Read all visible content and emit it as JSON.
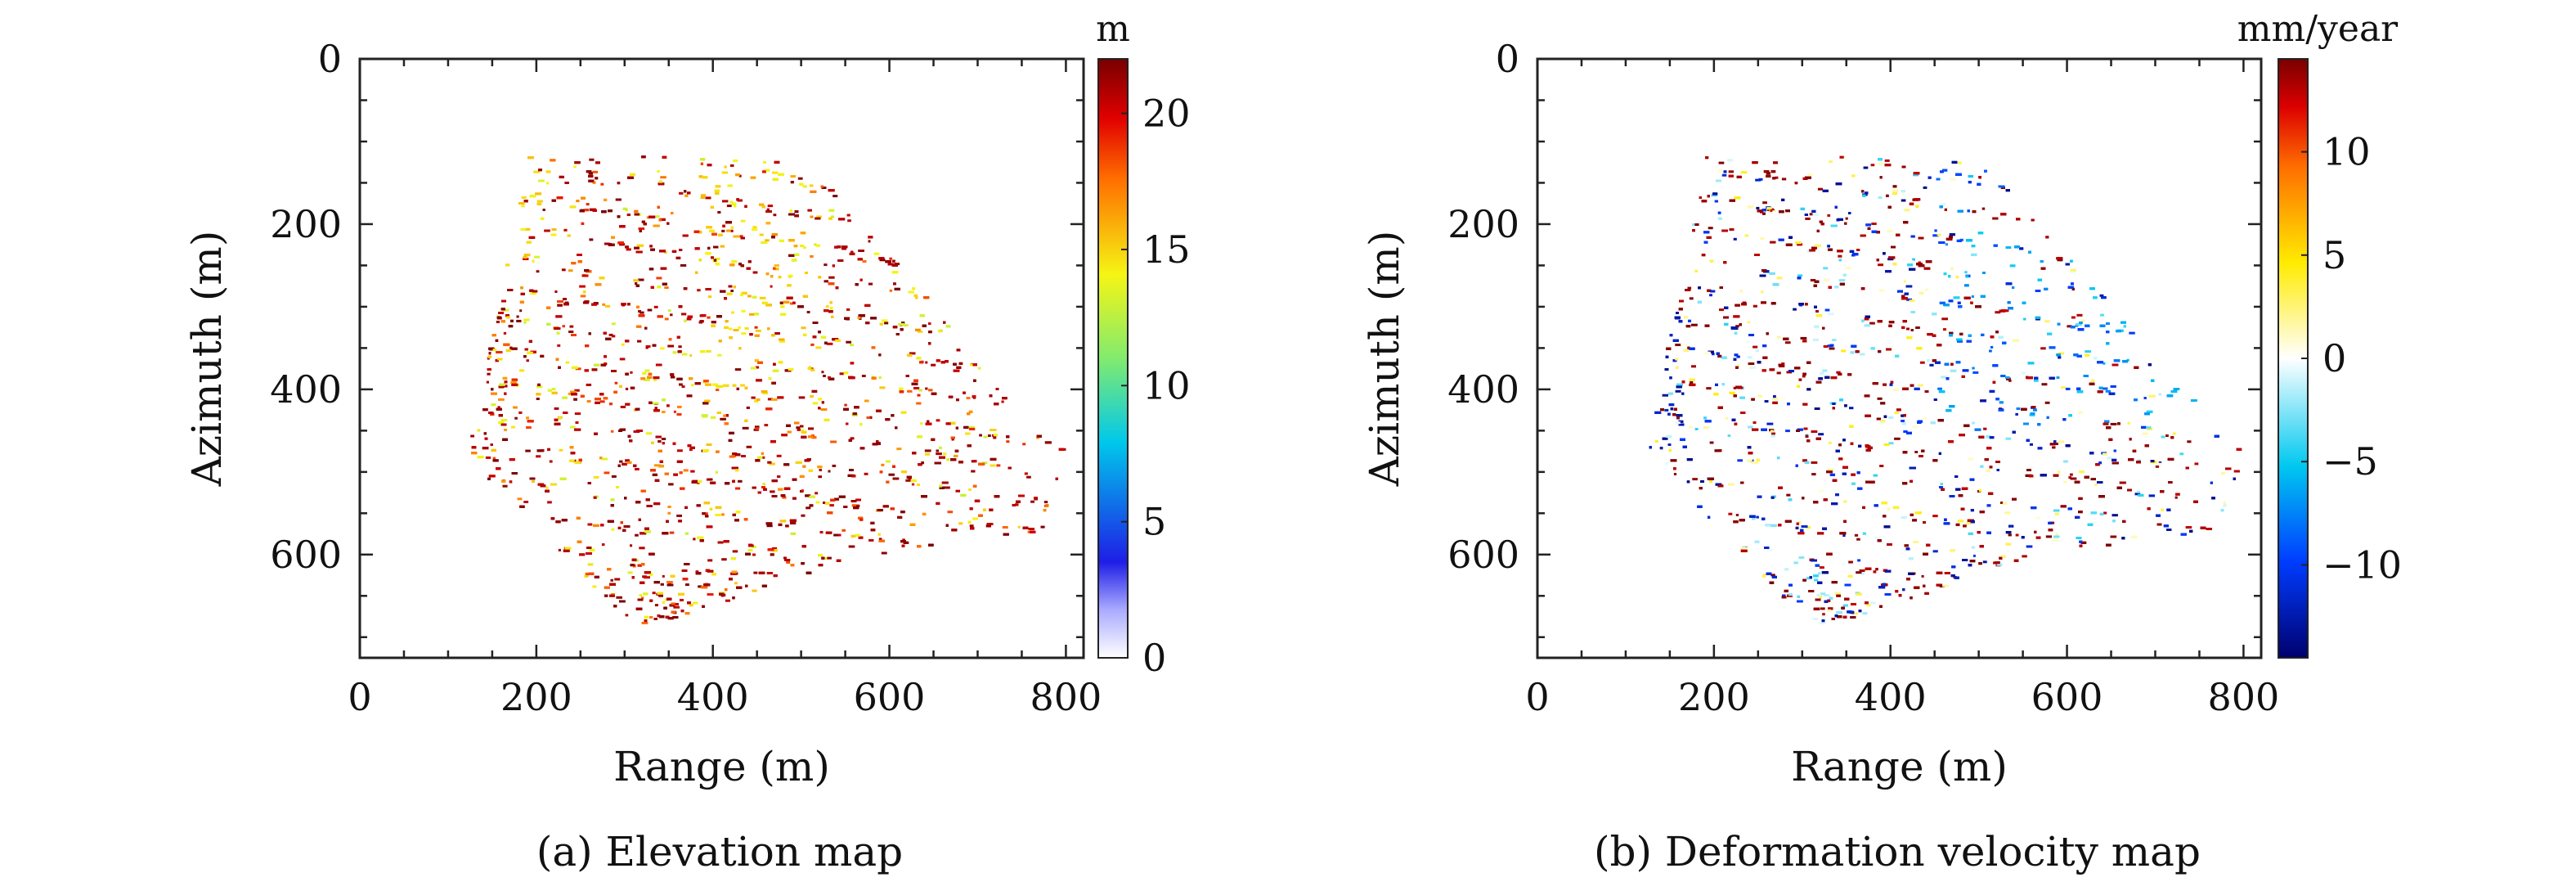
{
  "chart_data": [
    {
      "type": "scatter",
      "caption": "(a) Elevation map",
      "xlabel": "Range (m)",
      "ylabel": "Azimuth (m)",
      "xlim": [
        0,
        820
      ],
      "ylim": [
        725,
        0
      ],
      "xticks": [
        "0",
        "200",
        "400",
        "600",
        "800"
      ],
      "yticks": [
        "0",
        "200",
        "400",
        "600"
      ],
      "xtick_values": [
        0,
        200,
        400,
        600,
        800
      ],
      "ytick_values": [
        0,
        200,
        400,
        600
      ],
      "colorbar": {
        "unit": "m",
        "range": [
          0,
          22
        ],
        "ticks": [
          "0",
          "5",
          "10",
          "15",
          "20"
        ],
        "tick_values": [
          0,
          5,
          10,
          15,
          20
        ],
        "colormap": "white-blue-cyan-yellow-red-darkred"
      },
      "footprint_polygon": [
        [
          190,
          115
        ],
        [
          500,
          118
        ],
        [
          800,
          480
        ],
        [
          770,
          570
        ],
        [
          560,
          605
        ],
        [
          310,
          690
        ],
        [
          120,
          480
        ]
      ],
      "grid": false
    },
    {
      "type": "scatter",
      "caption": "(b) Deformation velocity map",
      "xlabel": "Range (m)",
      "ylabel": "Azimuth (m)",
      "xlim": [
        0,
        820
      ],
      "ylim": [
        725,
        0
      ],
      "xticks": [
        "0",
        "200",
        "400",
        "600",
        "800"
      ],
      "yticks": [
        "0",
        "200",
        "400",
        "600"
      ],
      "xtick_values": [
        0,
        200,
        400,
        600,
        800
      ],
      "ytick_values": [
        0,
        200,
        400,
        600
      ],
      "colorbar": {
        "unit": "mm/year",
        "range": [
          -14.5,
          14.5
        ],
        "ticks": [
          "−10",
          "−5",
          "0",
          "5",
          "10"
        ],
        "tick_values": [
          -10,
          -5,
          0,
          5,
          10
        ],
        "colormap": "darkblue-blue-cyan-white-yellow-red-darkred"
      },
      "footprint_polygon": [
        [
          190,
          115
        ],
        [
          500,
          118
        ],
        [
          800,
          480
        ],
        [
          770,
          570
        ],
        [
          560,
          605
        ],
        [
          310,
          690
        ],
        [
          120,
          480
        ]
      ],
      "grid": false
    }
  ]
}
